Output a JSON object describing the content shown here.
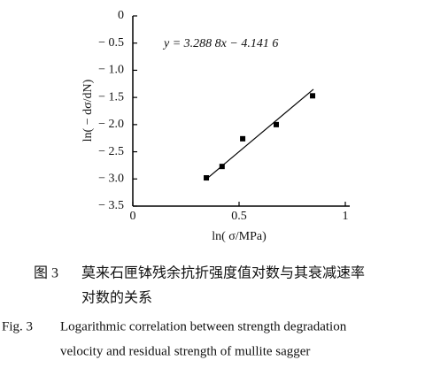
{
  "chart_data": {
    "type": "scatter",
    "equation": "y = 3.288 8x − 4.141 6",
    "xlabel": "ln( σ/MPa)",
    "ylabel": "ln( − dσ/dN)",
    "x": [
      0.346,
      0.42,
      0.517,
      0.675,
      0.846
    ],
    "values": [
      -2.98,
      -2.77,
      -2.26,
      -2.0,
      -1.47
    ],
    "color": "#000000",
    "fit_line": {
      "x": [
        0.35,
        0.85
      ],
      "values": [
        -2.99,
        -1.35
      ]
    },
    "xlim": [
      0,
      1
    ],
    "xticks": [
      0,
      0.5,
      1
    ],
    "ylim": [
      -3.5,
      0
    ],
    "yticks": [
      {
        "value": 0,
        "label": "0"
      },
      {
        "value": -0.5,
        "label": "− 0.5"
      },
      {
        "value": -1.0,
        "label": "− 1.0"
      },
      {
        "value": -1.5,
        "label": "− 1.5"
      },
      {
        "value": -2.0,
        "label": "− 2.0"
      },
      {
        "value": -2.5,
        "label": "− 2.5"
      },
      {
        "value": -3.0,
        "label": "− 3.0"
      },
      {
        "value": -3.5,
        "label": "− 3.5"
      }
    ]
  },
  "caption": {
    "zh_label": "图 3",
    "zh_lines": [
      "莫来石匣钵残余抗折强度值对数与其衰减速率",
      "对数的关系"
    ],
    "en_label": "Fig. 3",
    "en_lines": [
      "Logarithmic correlation between strength degradation",
      "velocity and residual strength of mullite sagger"
    ]
  }
}
